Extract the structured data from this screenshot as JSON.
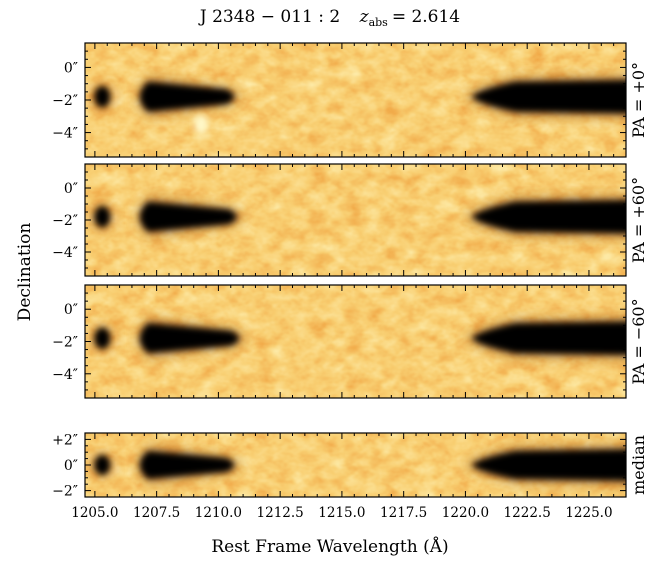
{
  "chart_data": {
    "type": "heatmap",
    "title": "J 2348 − 011 : 2    z_abs = 2.614",
    "title_main": "J 2348 − 011 : 2",
    "title_z_symbol": "z",
    "title_z_sub": "abs",
    "title_z_value": "= 2.614",
    "xlabel": "Rest Frame Wavelength   (Å)",
    "ylabel": "Declination",
    "xlim": [
      1204.6,
      1226.5
    ],
    "xticks": [
      1205.0,
      1207.5,
      1210.0,
      1212.5,
      1215.0,
      1217.5,
      1220.0,
      1222.5,
      1225.0
    ],
    "xtick_labels": [
      "1205.0",
      "1207.5",
      "1210.0",
      "1212.5",
      "1215.0",
      "1217.5",
      "1220.0",
      "1222.5",
      "1225.0"
    ],
    "colormap": [
      "#fff8c8",
      "#fde7a0",
      "#f9cf72",
      "#f2ad4c",
      "#e2892c",
      "#c05f17",
      "#8a3a0a",
      "#3c1603",
      "#000000"
    ],
    "panels": [
      {
        "label": "PA = +0°",
        "ylim": [
          1.5,
          -5.5
        ],
        "yticks": [
          0,
          -2,
          -4
        ],
        "ytick_labels": [
          "0″",
          "−2″",
          "−4″"
        ],
        "trace_dec": -1.8,
        "features": [
          {
            "kind": "emission-knot",
            "x": 1205.3,
            "dec": -1.8
          },
          {
            "kind": "emission-blob",
            "x_start": 1206.5,
            "x_end": 1210.8,
            "dec": -1.8
          },
          {
            "kind": "continuum",
            "x_start": 1220.0,
            "x_end": 1226.5,
            "dec": -1.8
          },
          {
            "kind": "residual-spot",
            "x": 1209.3,
            "dec": -3.5
          }
        ]
      },
      {
        "label": "PA = +60°",
        "ylim": [
          1.5,
          -5.5
        ],
        "yticks": [
          0,
          -2,
          -4
        ],
        "ytick_labels": [
          "0″",
          "−2″",
          "−4″"
        ],
        "trace_dec": -1.8,
        "features": [
          {
            "kind": "emission-knot",
            "x": 1205.3,
            "dec": -1.8
          },
          {
            "kind": "emission-blob",
            "x_start": 1206.5,
            "x_end": 1210.9,
            "dec": -1.8
          },
          {
            "kind": "continuum",
            "x_start": 1220.0,
            "x_end": 1226.5,
            "dec": -1.8
          }
        ]
      },
      {
        "label": "PA = −60°",
        "ylim": [
          1.5,
          -5.5
        ],
        "yticks": [
          0,
          -2,
          -4
        ],
        "ytick_labels": [
          "0″",
          "−2″",
          "−4″"
        ],
        "trace_dec": -1.8,
        "features": [
          {
            "kind": "emission-knot",
            "x": 1205.3,
            "dec": -1.8
          },
          {
            "kind": "emission-blob",
            "x_start": 1206.5,
            "x_end": 1211.0,
            "dec": -1.8
          },
          {
            "kind": "continuum",
            "x_start": 1220.0,
            "x_end": 1226.5,
            "dec": -1.8
          }
        ]
      },
      {
        "label": "median",
        "ylim": [
          2.5,
          -2.5
        ],
        "yticks": [
          2,
          0,
          -2
        ],
        "ytick_labels": [
          "+2″",
          "0″",
          "−2″"
        ],
        "trace_dec": 0,
        "features": [
          {
            "kind": "emission-knot",
            "x": 1205.3,
            "dec": 0
          },
          {
            "kind": "emission-blob",
            "x_start": 1206.5,
            "x_end": 1210.8,
            "dec": 0
          },
          {
            "kind": "continuum",
            "x_start": 1220.0,
            "x_end": 1226.5,
            "dec": 0
          }
        ]
      }
    ]
  }
}
